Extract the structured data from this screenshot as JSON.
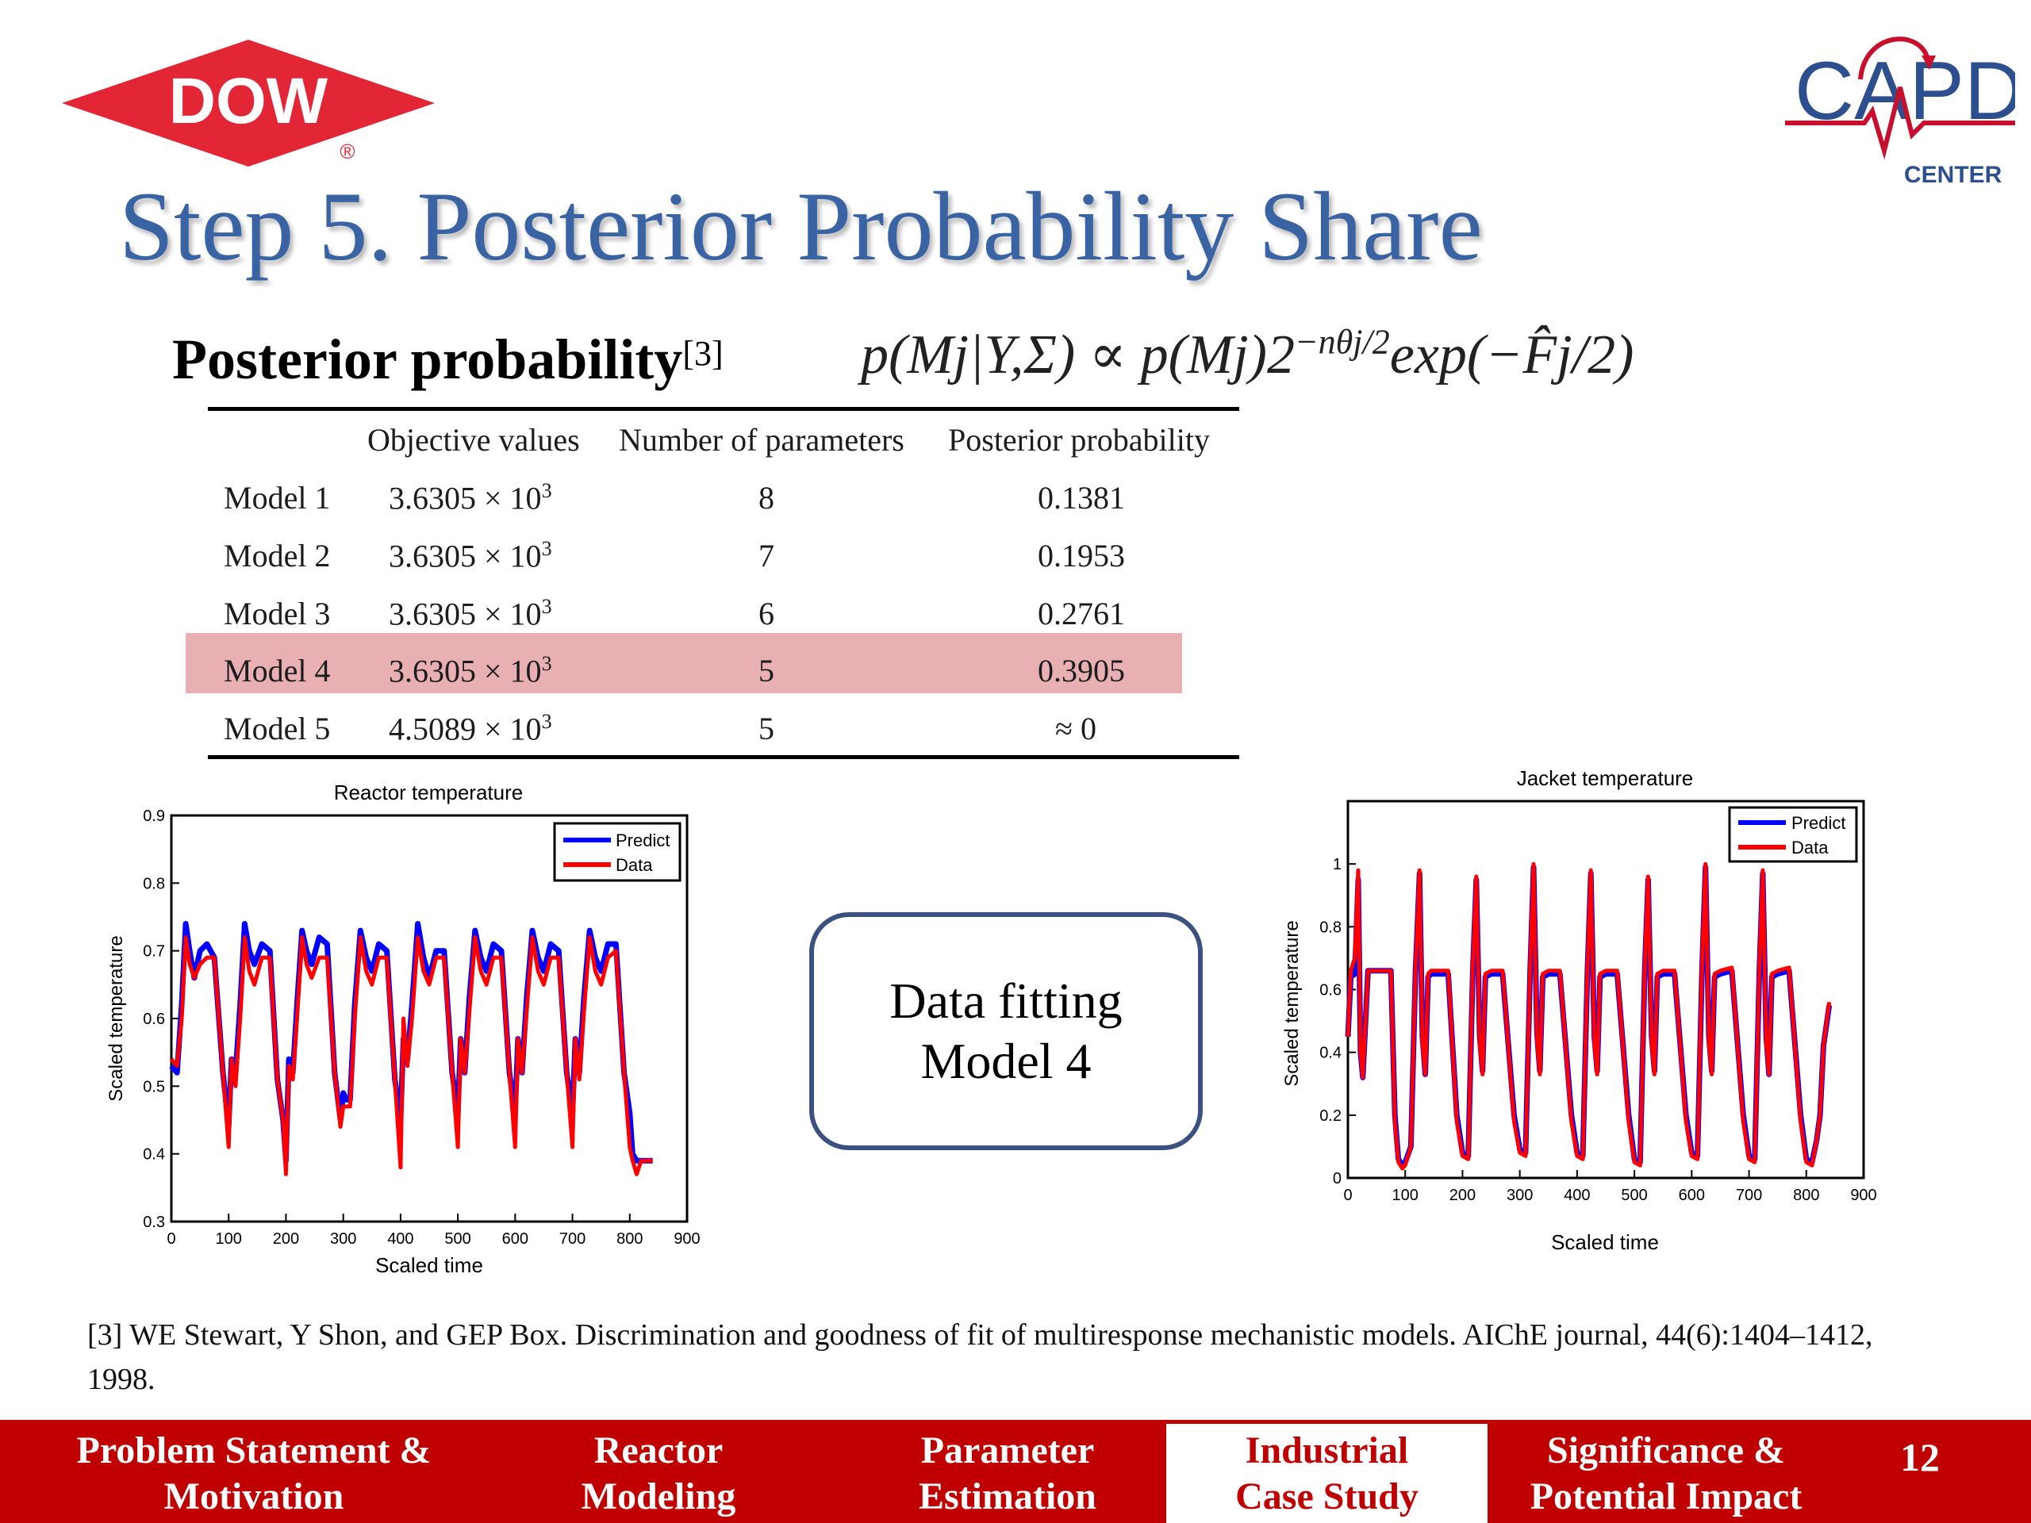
{
  "logos": {
    "dow": "DOW",
    "dow_mark": "®",
    "capd": "CAPD",
    "capd_sub": "CENTER"
  },
  "title": "Step 5. Posterior Probability Share",
  "posterior": {
    "label": "Posterior probability",
    "ref": "[3]"
  },
  "formula": {
    "main": "p(Mj|Y,Σ) ∝ p(Mj)2",
    "exponent": "−nθj/2",
    "tail": "exp(−F̂j/2)"
  },
  "table": {
    "headers": [
      "Objective values",
      "Number of parameters",
      "Posterior probability"
    ],
    "rows": [
      {
        "model": "Model 1",
        "objective": "3.6305 × 10",
        "exp": "3",
        "params": "8",
        "prob": "0.1381"
      },
      {
        "model": "Model 2",
        "objective": "3.6305 × 10",
        "exp": "3",
        "params": "7",
        "prob": "0.1953"
      },
      {
        "model": "Model 3",
        "objective": "3.6305 × 10",
        "exp": "3",
        "params": "6",
        "prob": "0.2761"
      },
      {
        "model": "Model 4",
        "objective": "3.6305 × 10",
        "exp": "3",
        "params": "5",
        "prob": "0.3905"
      },
      {
        "model": "Model 5",
        "objective": "4.5089 × 10",
        "exp": "3",
        "params": "5",
        "prob": "≈ 0"
      }
    ],
    "highlight_row": 3,
    "highlight_color": "#e8b0b3"
  },
  "fit_box": {
    "line1": "Data fitting",
    "line2": "Model 4"
  },
  "reference": "[3]   WE Stewart, Y Shon, and GEP Box. Discrimination and goodness of fit of multiresponse mechanistic models. AIChE journal, 44(6):1404–1412, 1998.",
  "nav": [
    {
      "line1": "Problem Statement &",
      "line2": "Motivation",
      "active": false
    },
    {
      "line1": "Reactor",
      "line2": "Modeling",
      "active": false
    },
    {
      "line1": "Parameter",
      "line2": "Estimation",
      "active": false
    },
    {
      "line1": "Industrial",
      "line2": "Case Study",
      "active": true
    },
    {
      "line1": "Significance &",
      "line2": "Potential Impact",
      "active": false
    }
  ],
  "page_number": "12",
  "colors": {
    "title": "#3a63a3",
    "footer": "#c00000",
    "predict": "#0000ff",
    "data": "#ff0000"
  },
  "chart_data": [
    {
      "type": "line",
      "title": "Reactor temperature",
      "xlabel": "Scaled time",
      "ylabel": "Scaled temperature",
      "xlim": [
        0,
        900
      ],
      "ylim": [
        0.3,
        0.9
      ],
      "xticks": [
        0,
        100,
        200,
        300,
        400,
        500,
        600,
        700,
        800,
        900
      ],
      "yticks": [
        0.3,
        0.4,
        0.5,
        0.6,
        0.7,
        0.8,
        0.9
      ],
      "legend": "top-right",
      "series": [
        {
          "name": "Predict",
          "color": "#0000ff",
          "x": [
            0,
            10,
            18,
            25,
            32,
            40,
            50,
            62,
            75,
            90,
            100,
            105,
            112,
            120,
            128,
            136,
            145,
            158,
            172,
            185,
            195,
            200,
            205,
            212,
            220,
            228,
            236,
            245,
            258,
            272,
            285,
            295,
            300,
            305,
            312,
            320,
            330,
            340,
            350,
            362,
            376,
            390,
            400,
            405,
            412,
            420,
            430,
            440,
            450,
            462,
            476,
            490,
            500,
            505,
            512,
            520,
            530,
            540,
            550,
            562,
            576,
            590,
            600,
            605,
            612,
            620,
            630,
            640,
            650,
            662,
            676,
            690,
            700,
            705,
            712,
            720,
            730,
            740,
            750,
            762,
            776,
            790,
            800,
            805,
            812,
            820,
            830,
            840
          ],
          "y": [
            0.53,
            0.52,
            0.62,
            0.74,
            0.7,
            0.66,
            0.7,
            0.71,
            0.69,
            0.52,
            0.44,
            0.54,
            0.52,
            0.62,
            0.74,
            0.7,
            0.68,
            0.71,
            0.7,
            0.51,
            0.45,
            0.39,
            0.54,
            0.52,
            0.63,
            0.73,
            0.7,
            0.68,
            0.72,
            0.71,
            0.52,
            0.45,
            0.49,
            0.48,
            0.48,
            0.62,
            0.73,
            0.69,
            0.67,
            0.71,
            0.7,
            0.51,
            0.45,
            0.57,
            0.54,
            0.62,
            0.74,
            0.69,
            0.66,
            0.7,
            0.7,
            0.52,
            0.46,
            0.57,
            0.52,
            0.63,
            0.73,
            0.69,
            0.67,
            0.71,
            0.7,
            0.52,
            0.46,
            0.57,
            0.52,
            0.63,
            0.73,
            0.69,
            0.67,
            0.71,
            0.7,
            0.52,
            0.46,
            0.57,
            0.52,
            0.63,
            0.73,
            0.69,
            0.67,
            0.71,
            0.71,
            0.52,
            0.46,
            0.4,
            0.39,
            0.39,
            0.39,
            0.39
          ]
        },
        {
          "name": "Data",
          "color": "#ff0000",
          "x": [
            0,
            10,
            18,
            25,
            32,
            40,
            50,
            62,
            75,
            90,
            100,
            105,
            112,
            120,
            128,
            136,
            145,
            158,
            172,
            185,
            195,
            200,
            205,
            212,
            220,
            228,
            236,
            245,
            258,
            272,
            285,
            295,
            300,
            305,
            312,
            320,
            330,
            340,
            350,
            362,
            376,
            390,
            400,
            405,
            412,
            420,
            430,
            440,
            450,
            462,
            476,
            490,
            500,
            505,
            512,
            520,
            530,
            540,
            550,
            562,
            576,
            590,
            600,
            605,
            612,
            620,
            630,
            640,
            650,
            662,
            676,
            690,
            700,
            705,
            712,
            720,
            730,
            740,
            750,
            762,
            776,
            790,
            800,
            805,
            812,
            820,
            830,
            840
          ],
          "y": [
            0.54,
            0.53,
            0.6,
            0.72,
            0.68,
            0.66,
            0.68,
            0.69,
            0.69,
            0.52,
            0.41,
            0.54,
            0.5,
            0.6,
            0.72,
            0.67,
            0.65,
            0.69,
            0.69,
            0.51,
            0.45,
            0.37,
            0.53,
            0.51,
            0.61,
            0.72,
            0.68,
            0.66,
            0.69,
            0.69,
            0.52,
            0.44,
            0.47,
            0.47,
            0.47,
            0.6,
            0.72,
            0.67,
            0.65,
            0.69,
            0.69,
            0.51,
            0.38,
            0.6,
            0.53,
            0.6,
            0.72,
            0.67,
            0.65,
            0.69,
            0.69,
            0.52,
            0.41,
            0.57,
            0.52,
            0.61,
            0.72,
            0.67,
            0.65,
            0.69,
            0.69,
            0.52,
            0.41,
            0.57,
            0.52,
            0.61,
            0.72,
            0.67,
            0.65,
            0.69,
            0.69,
            0.52,
            0.41,
            0.57,
            0.51,
            0.61,
            0.72,
            0.67,
            0.65,
            0.69,
            0.7,
            0.52,
            0.41,
            0.39,
            0.37,
            0.39,
            0.39,
            0.39
          ]
        }
      ]
    },
    {
      "type": "line",
      "title": "Jacket temperature",
      "xlabel": "Scaled time",
      "ylabel": "Scaled temperature",
      "xlim": [
        0,
        900
      ],
      "ylim": [
        0,
        1.2
      ],
      "xticks": [
        0,
        100,
        200,
        300,
        400,
        500,
        600,
        700,
        800,
        900
      ],
      "yticks": [
        0,
        0.2,
        0.4,
        0.6,
        0.8,
        1
      ],
      "legend": "top-right",
      "series": [
        {
          "name": "Predict",
          "color": "#0000ff",
          "x": [
            0,
            5,
            12,
            18,
            22,
            26,
            35,
            55,
            75,
            82,
            88,
            95,
            100,
            110,
            118,
            125,
            130,
            135,
            140,
            145,
            155,
            175,
            190,
            200,
            210,
            218,
            224,
            230,
            235,
            240,
            250,
            270,
            290,
            300,
            310,
            318,
            324,
            330,
            335,
            340,
            350,
            370,
            390,
            400,
            410,
            418,
            424,
            430,
            435,
            440,
            450,
            470,
            490,
            500,
            510,
            518,
            524,
            530,
            535,
            540,
            550,
            570,
            590,
            600,
            610,
            618,
            624,
            630,
            635,
            640,
            650,
            670,
            690,
            700,
            710,
            718,
            724,
            730,
            735,
            740,
            750,
            770,
            790,
            800,
            810,
            818,
            824,
            830,
            840
          ],
          "y": [
            0.45,
            0.64,
            0.65,
            0.95,
            0.4,
            0.32,
            0.66,
            0.66,
            0.66,
            0.2,
            0.06,
            0.04,
            0.05,
            0.1,
            0.66,
            0.97,
            0.45,
            0.33,
            0.64,
            0.65,
            0.65,
            0.65,
            0.2,
            0.08,
            0.07,
            0.66,
            0.95,
            0.45,
            0.34,
            0.64,
            0.65,
            0.65,
            0.2,
            0.09,
            0.08,
            0.66,
            0.99,
            0.46,
            0.34,
            0.64,
            0.65,
            0.65,
            0.2,
            0.08,
            0.07,
            0.66,
            0.97,
            0.45,
            0.34,
            0.64,
            0.65,
            0.65,
            0.2,
            0.06,
            0.05,
            0.66,
            0.95,
            0.45,
            0.34,
            0.64,
            0.65,
            0.65,
            0.2,
            0.08,
            0.07,
            0.66,
            0.99,
            0.45,
            0.34,
            0.64,
            0.65,
            0.66,
            0.2,
            0.07,
            0.06,
            0.66,
            0.97,
            0.45,
            0.33,
            0.64,
            0.65,
            0.66,
            0.2,
            0.06,
            0.05,
            0.12,
            0.2,
            0.42,
            0.55
          ]
        },
        {
          "name": "Data",
          "color": "#ff0000",
          "x": [
            0,
            5,
            12,
            18,
            22,
            26,
            35,
            55,
            75,
            82,
            88,
            95,
            100,
            110,
            118,
            125,
            130,
            135,
            140,
            145,
            155,
            175,
            190,
            200,
            210,
            218,
            224,
            230,
            235,
            240,
            250,
            270,
            290,
            300,
            310,
            318,
            324,
            330,
            335,
            340,
            350,
            370,
            390,
            400,
            410,
            418,
            424,
            430,
            435,
            440,
            450,
            470,
            490,
            500,
            510,
            518,
            524,
            530,
            535,
            540,
            550,
            570,
            590,
            600,
            610,
            618,
            624,
            630,
            635,
            640,
            650,
            670,
            690,
            700,
            710,
            718,
            724,
            730,
            735,
            740,
            750,
            770,
            790,
            800,
            810,
            818,
            824,
            830,
            840
          ],
          "y": [
            0.45,
            0.66,
            0.7,
            0.98,
            0.4,
            0.32,
            0.66,
            0.66,
            0.66,
            0.18,
            0.05,
            0.03,
            0.04,
            0.1,
            0.67,
            0.98,
            0.43,
            0.33,
            0.65,
            0.66,
            0.66,
            0.66,
            0.18,
            0.07,
            0.06,
            0.67,
            0.96,
            0.43,
            0.33,
            0.65,
            0.66,
            0.66,
            0.18,
            0.08,
            0.07,
            0.67,
            1.0,
            0.44,
            0.33,
            0.65,
            0.66,
            0.66,
            0.18,
            0.07,
            0.06,
            0.67,
            0.98,
            0.43,
            0.33,
            0.65,
            0.66,
            0.66,
            0.18,
            0.05,
            0.04,
            0.67,
            0.96,
            0.43,
            0.33,
            0.65,
            0.66,
            0.66,
            0.18,
            0.07,
            0.06,
            0.67,
            1.0,
            0.43,
            0.33,
            0.65,
            0.66,
            0.67,
            0.18,
            0.06,
            0.05,
            0.67,
            0.98,
            0.43,
            0.33,
            0.65,
            0.66,
            0.67,
            0.18,
            0.05,
            0.04,
            0.12,
            0.2,
            0.42,
            0.56
          ]
        }
      ]
    }
  ]
}
